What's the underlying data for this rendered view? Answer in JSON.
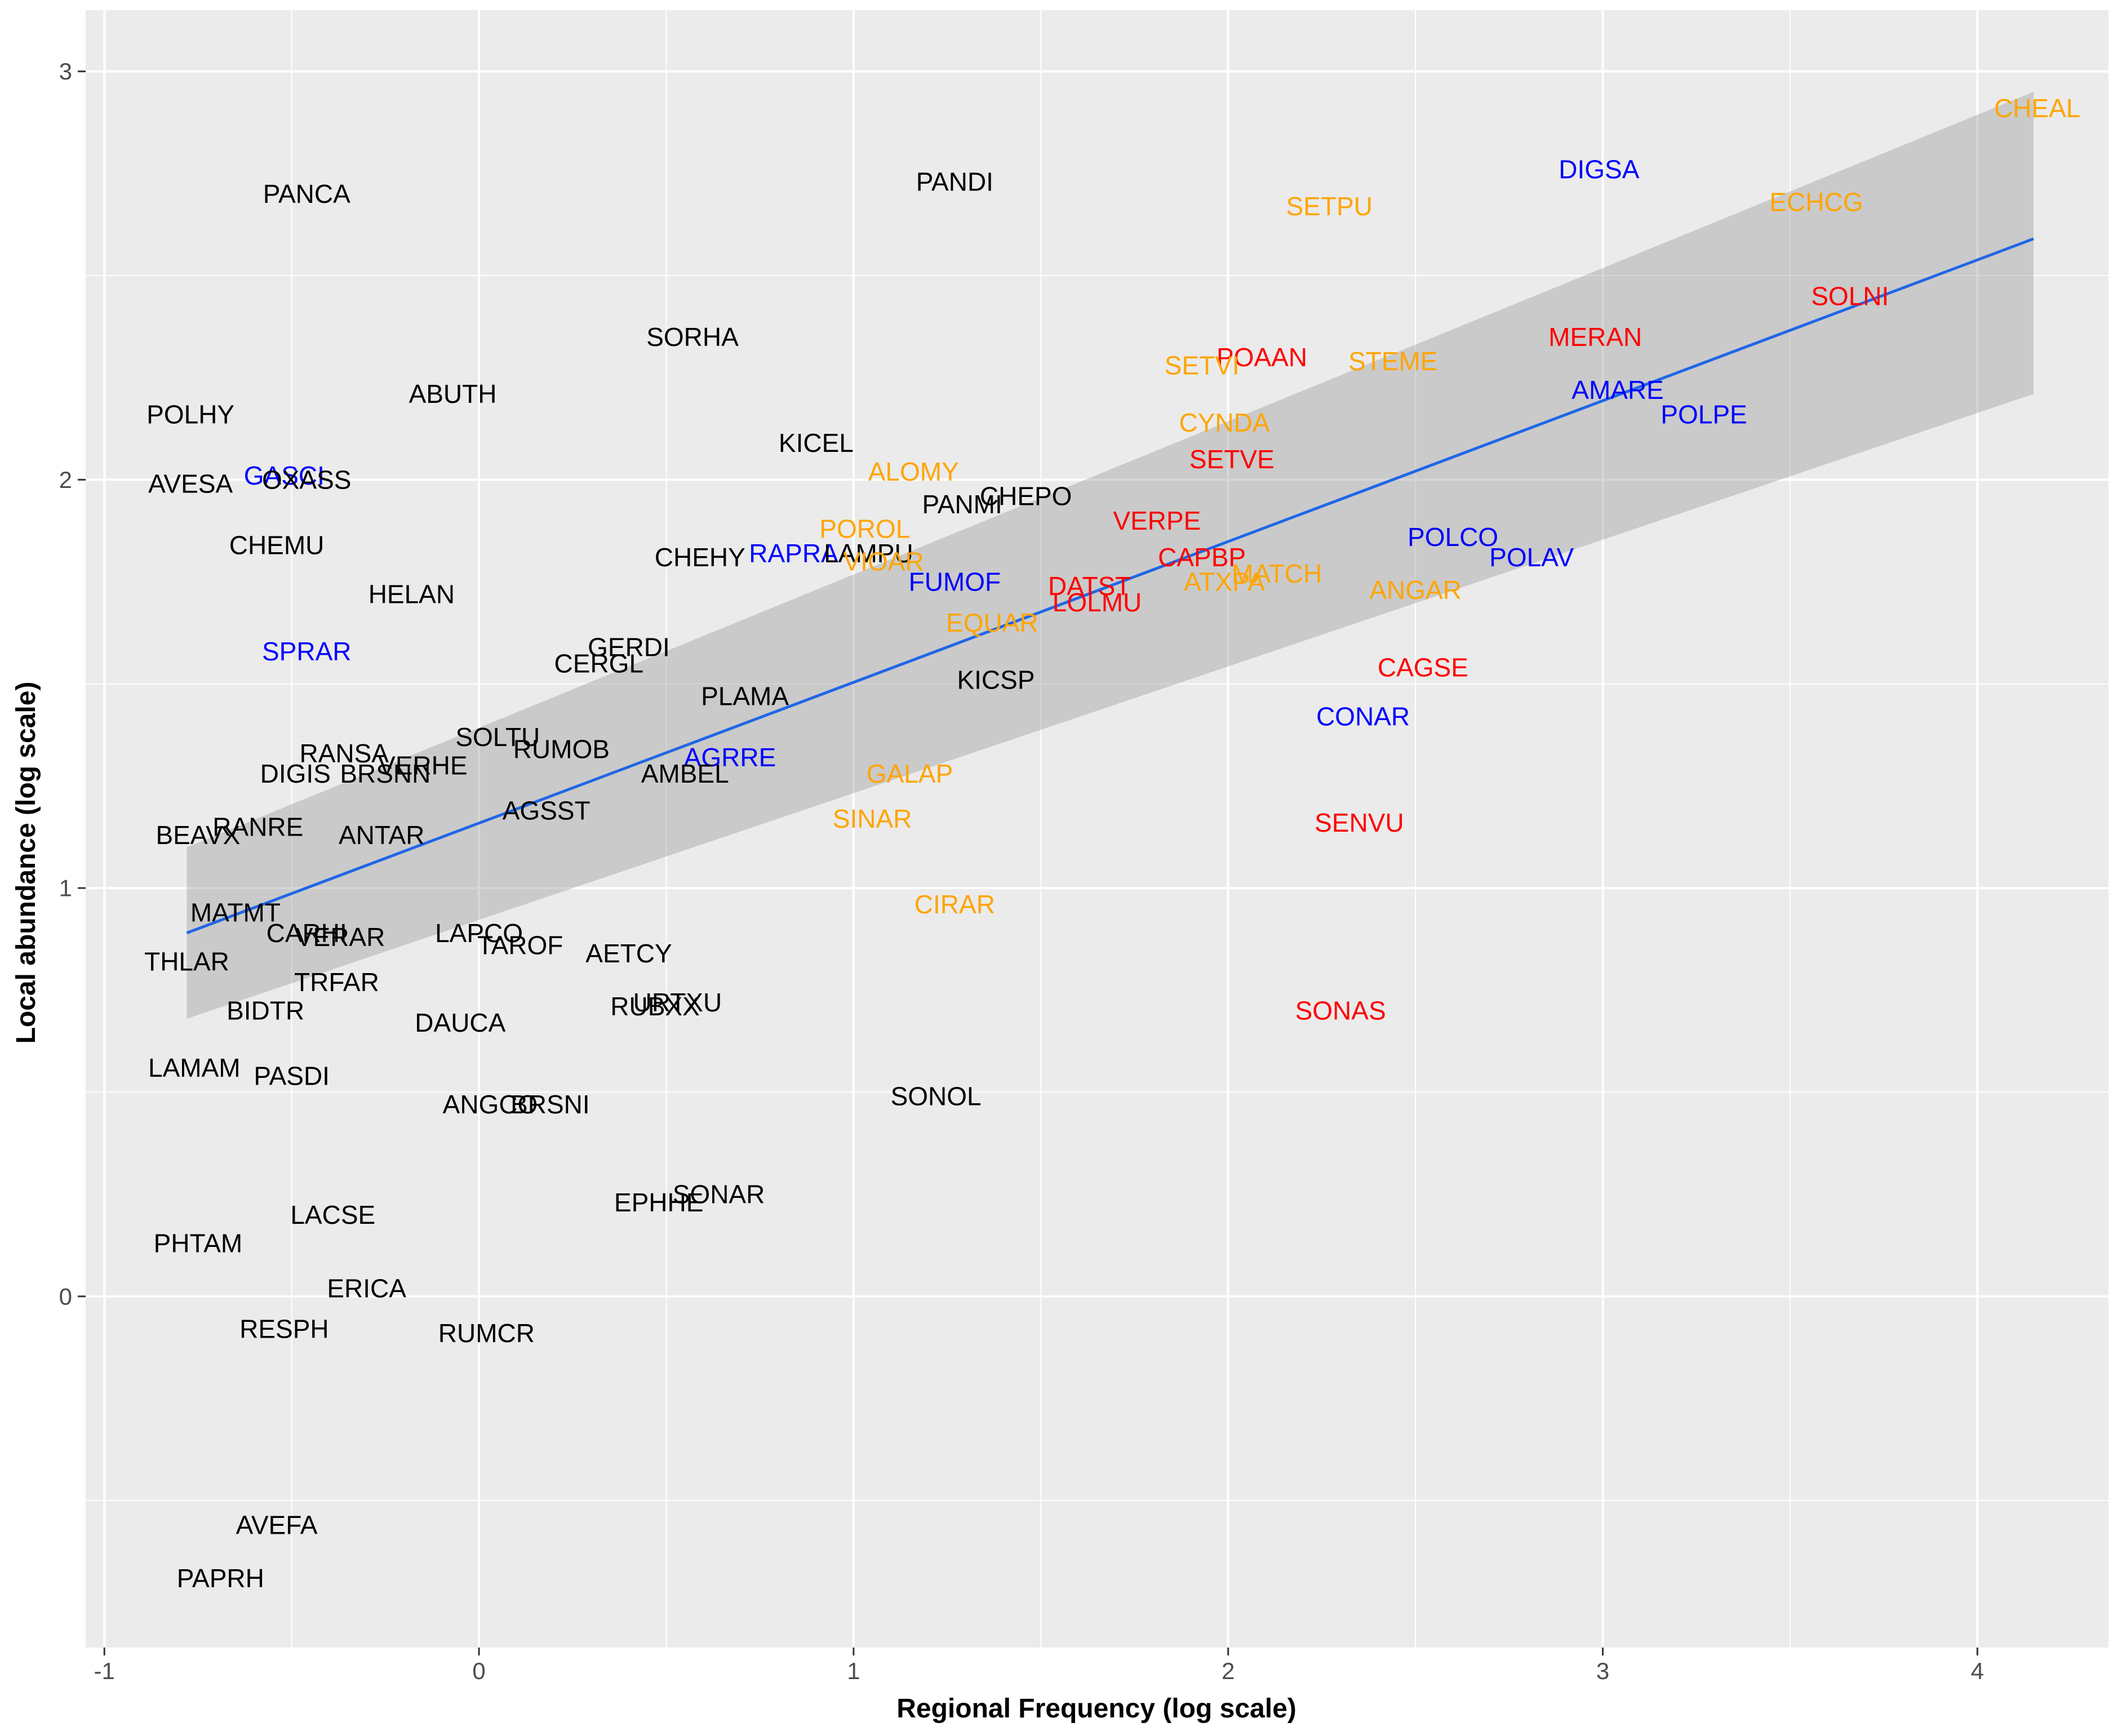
{
  "chart_data": {
    "type": "scatter",
    "title": "",
    "xlabel": "Regional Frequency (log scale)",
    "ylabel": "Local abundance (log scale)",
    "xlim": [
      -1.05,
      4.35
    ],
    "ylim": [
      -0.86,
      3.15
    ],
    "grid": true,
    "x_ticks": [
      -1,
      0,
      1,
      2,
      3,
      4
    ],
    "y_ticks": [
      0,
      1,
      2,
      3
    ],
    "x_tick_labels": [
      "-1",
      "0",
      "1",
      "2",
      "3",
      "4"
    ],
    "y_tick_labels": [
      "0",
      "1",
      "2",
      "3"
    ],
    "colors": {
      "black": "#000000",
      "orange": "#FFA500",
      "red": "#FF0000",
      "blue": "#0000FF",
      "fit_line": "#1f66e8",
      "ribbon": "#cccccc",
      "panel": "#ebebeb",
      "gridline": "#ffffff"
    },
    "regression": {
      "x": [
        -0.78,
        4.15
      ],
      "y": [
        0.89,
        2.59
      ],
      "ci_lower": [
        0.68,
        2.21
      ],
      "ci_upper": [
        1.1,
        2.95
      ]
    },
    "points": [
      {
        "label": "CHEAL",
        "x": 4.16,
        "y": 2.91,
        "color": "orange"
      },
      {
        "label": "DIGSA",
        "x": 2.99,
        "y": 2.76,
        "color": "blue"
      },
      {
        "label": "ECHCG",
        "x": 3.57,
        "y": 2.68,
        "color": "orange"
      },
      {
        "label": "SETPU",
        "x": 2.27,
        "y": 2.67,
        "color": "orange"
      },
      {
        "label": "PANDI",
        "x": 1.27,
        "y": 2.73,
        "color": "black"
      },
      {
        "label": "PANCA",
        "x": -0.46,
        "y": 2.7,
        "color": "black"
      },
      {
        "label": "SOLNI",
        "x": 3.66,
        "y": 2.45,
        "color": "red"
      },
      {
        "label": "MERAN",
        "x": 2.98,
        "y": 2.35,
        "color": "red"
      },
      {
        "label": "SORHA",
        "x": 0.57,
        "y": 2.35,
        "color": "black"
      },
      {
        "label": "POAAN",
        "x": 2.09,
        "y": 2.3,
        "color": "red"
      },
      {
        "label": "SETVI",
        "x": 1.93,
        "y": 2.28,
        "color": "orange"
      },
      {
        "label": "STEME",
        "x": 2.44,
        "y": 2.29,
        "color": "orange"
      },
      {
        "label": "AMARE",
        "x": 3.04,
        "y": 2.22,
        "color": "blue"
      },
      {
        "label": "POLPE",
        "x": 3.27,
        "y": 2.16,
        "color": "blue"
      },
      {
        "label": "ABUTH",
        "x": -0.07,
        "y": 2.21,
        "color": "black"
      },
      {
        "label": "POLHY",
        "x": -0.77,
        "y": 2.16,
        "color": "black"
      },
      {
        "label": "CYNDA",
        "x": 1.99,
        "y": 2.14,
        "color": "orange"
      },
      {
        "label": "KICEL",
        "x": 0.9,
        "y": 2.09,
        "color": "black"
      },
      {
        "label": "SETVE",
        "x": 2.01,
        "y": 2.05,
        "color": "red"
      },
      {
        "label": "ALOMY",
        "x": 1.16,
        "y": 2.02,
        "color": "orange"
      },
      {
        "label": "GASCI",
        "x": -0.52,
        "y": 2.01,
        "color": "blue"
      },
      {
        "label": "AVESA",
        "x": -0.77,
        "y": 1.99,
        "color": "black"
      },
      {
        "label": "OXASS",
        "x": -0.46,
        "y": 2.0,
        "color": "black"
      },
      {
        "label": "CHEPO",
        "x": 1.46,
        "y": 1.96,
        "color": "black"
      },
      {
        "label": "PANMI",
        "x": 1.29,
        "y": 1.94,
        "color": "black"
      },
      {
        "label": "VERPE",
        "x": 1.81,
        "y": 1.9,
        "color": "red"
      },
      {
        "label": "POROL",
        "x": 1.03,
        "y": 1.88,
        "color": "orange"
      },
      {
        "label": "POLCO",
        "x": 2.6,
        "y": 1.86,
        "color": "blue"
      },
      {
        "label": "CHEMU",
        "x": -0.54,
        "y": 1.84,
        "color": "black"
      },
      {
        "label": "RAPRA",
        "x": 0.84,
        "y": 1.82,
        "color": "blue"
      },
      {
        "label": "LAMPU",
        "x": 1.04,
        "y": 1.82,
        "color": "black"
      },
      {
        "label": "CHEHY",
        "x": 0.59,
        "y": 1.81,
        "color": "black"
      },
      {
        "label": "CAPBP",
        "x": 1.93,
        "y": 1.81,
        "color": "red"
      },
      {
        "label": "POLAV",
        "x": 2.81,
        "y": 1.81,
        "color": "blue"
      },
      {
        "label": "VIOAR",
        "x": 1.08,
        "y": 1.8,
        "color": "orange"
      },
      {
        "label": "MATCH",
        "x": 2.13,
        "y": 1.77,
        "color": "orange"
      },
      {
        "label": "ATXPA",
        "x": 1.99,
        "y": 1.75,
        "color": "orange"
      },
      {
        "label": "FUMOF",
        "x": 1.27,
        "y": 1.75,
        "color": "blue"
      },
      {
        "label": "DATST",
        "x": 1.63,
        "y": 1.74,
        "color": "red"
      },
      {
        "label": "ANGAR",
        "x": 2.5,
        "y": 1.73,
        "color": "orange"
      },
      {
        "label": "HELAN",
        "x": -0.18,
        "y": 1.72,
        "color": "black"
      },
      {
        "label": "LOLMU",
        "x": 1.65,
        "y": 1.7,
        "color": "red"
      },
      {
        "label": "EQUAR",
        "x": 1.37,
        "y": 1.65,
        "color": "orange"
      },
      {
        "label": "SPRAR",
        "x": -0.46,
        "y": 1.58,
        "color": "blue"
      },
      {
        "label": "GERDI",
        "x": 0.4,
        "y": 1.59,
        "color": "black"
      },
      {
        "label": "CERGL",
        "x": 0.32,
        "y": 1.55,
        "color": "black"
      },
      {
        "label": "CAGSE",
        "x": 2.52,
        "y": 1.54,
        "color": "red"
      },
      {
        "label": "KICSP",
        "x": 1.38,
        "y": 1.51,
        "color": "black"
      },
      {
        "label": "PLAMA",
        "x": 0.71,
        "y": 1.47,
        "color": "black"
      },
      {
        "label": "CONAR",
        "x": 2.36,
        "y": 1.42,
        "color": "blue"
      },
      {
        "label": "SOLTU",
        "x": 0.05,
        "y": 1.37,
        "color": "black"
      },
      {
        "label": "RUMOB",
        "x": 0.22,
        "y": 1.34,
        "color": "black"
      },
      {
        "label": "RANSA",
        "x": -0.36,
        "y": 1.33,
        "color": "black"
      },
      {
        "label": "AGRRE",
        "x": 0.67,
        "y": 1.32,
        "color": "blue"
      },
      {
        "label": "VERHE",
        "x": -0.15,
        "y": 1.3,
        "color": "black"
      },
      {
        "label": "DIGIS",
        "x": -0.49,
        "y": 1.28,
        "color": "black"
      },
      {
        "label": "BRSNN",
        "x": -0.25,
        "y": 1.28,
        "color": "black"
      },
      {
        "label": "AMBEL",
        "x": 0.55,
        "y": 1.28,
        "color": "black"
      },
      {
        "label": "GALAP",
        "x": 1.15,
        "y": 1.28,
        "color": "orange"
      },
      {
        "label": "AGSST",
        "x": 0.18,
        "y": 1.19,
        "color": "black"
      },
      {
        "label": "SINAR",
        "x": 1.05,
        "y": 1.17,
        "color": "orange"
      },
      {
        "label": "SENVU",
        "x": 2.35,
        "y": 1.16,
        "color": "red"
      },
      {
        "label": "RANRE",
        "x": -0.59,
        "y": 1.15,
        "color": "black"
      },
      {
        "label": "ANTAR",
        "x": -0.26,
        "y": 1.13,
        "color": "black"
      },
      {
        "label": "BEAVX",
        "x": -0.75,
        "y": 1.13,
        "color": "black"
      },
      {
        "label": "CIRAR",
        "x": 1.27,
        "y": 0.96,
        "color": "orange"
      },
      {
        "label": "MATMT",
        "x": -0.65,
        "y": 0.94,
        "color": "black"
      },
      {
        "label": "CARHI",
        "x": -0.46,
        "y": 0.89,
        "color": "black"
      },
      {
        "label": "LAPCO",
        "x": 0.0,
        "y": 0.89,
        "color": "black"
      },
      {
        "label": "VERAR",
        "x": -0.37,
        "y": 0.88,
        "color": "black"
      },
      {
        "label": "TAROF",
        "x": 0.11,
        "y": 0.86,
        "color": "black"
      },
      {
        "label": "AETCY",
        "x": 0.4,
        "y": 0.84,
        "color": "black"
      },
      {
        "label": "THLAR",
        "x": -0.78,
        "y": 0.82,
        "color": "black"
      },
      {
        "label": "TRFAR",
        "x": -0.38,
        "y": 0.77,
        "color": "black"
      },
      {
        "label": "RUBXX",
        "x": 0.47,
        "y": 0.71,
        "color": "black"
      },
      {
        "label": "URTXU",
        "x": 0.53,
        "y": 0.72,
        "color": "black"
      },
      {
        "label": "SONAS",
        "x": 2.3,
        "y": 0.7,
        "color": "red"
      },
      {
        "label": "BIDTR",
        "x": -0.57,
        "y": 0.7,
        "color": "black"
      },
      {
        "label": "DAUCA",
        "x": -0.05,
        "y": 0.67,
        "color": "black"
      },
      {
        "label": "LAMAM",
        "x": -0.76,
        "y": 0.56,
        "color": "black"
      },
      {
        "label": "PASDI",
        "x": -0.5,
        "y": 0.54,
        "color": "black"
      },
      {
        "label": "SONOL",
        "x": 1.22,
        "y": 0.49,
        "color": "black"
      },
      {
        "label": "ANGCO",
        "x": 0.03,
        "y": 0.47,
        "color": "black"
      },
      {
        "label": "BRSNI",
        "x": 0.19,
        "y": 0.47,
        "color": "black"
      },
      {
        "label": "SONAR",
        "x": 0.64,
        "y": 0.25,
        "color": "black"
      },
      {
        "label": "EPHHE",
        "x": 0.48,
        "y": 0.23,
        "color": "black"
      },
      {
        "label": "LACSE",
        "x": -0.39,
        "y": 0.2,
        "color": "black"
      },
      {
        "label": "PHTAM",
        "x": -0.75,
        "y": 0.13,
        "color": "black"
      },
      {
        "label": "ERICA",
        "x": -0.3,
        "y": 0.02,
        "color": "black"
      },
      {
        "label": "RESPH",
        "x": -0.52,
        "y": -0.08,
        "color": "black"
      },
      {
        "label": "RUMCR",
        "x": 0.02,
        "y": -0.09,
        "color": "black"
      },
      {
        "label": "AVEFA",
        "x": -0.54,
        "y": -0.56,
        "color": "black"
      },
      {
        "label": "PAPRH",
        "x": -0.69,
        "y": -0.69,
        "color": "black"
      }
    ]
  }
}
